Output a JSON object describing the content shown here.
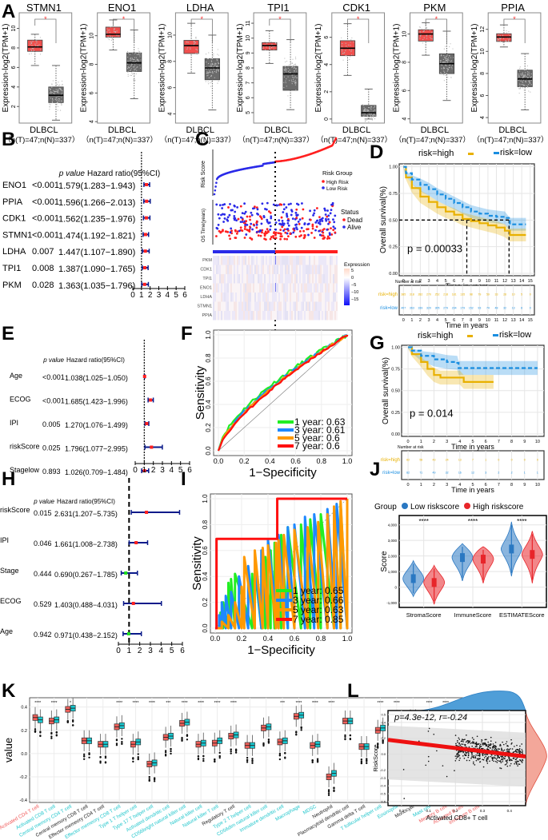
{
  "panel_labels": [
    "A",
    "B",
    "C",
    "D",
    "E",
    "F",
    "G",
    "H",
    "I",
    "J",
    "K",
    "L"
  ],
  "colors": {
    "tumor": "#f0504e",
    "normal": "#6b6b6b",
    "high_risk": "#ff2020",
    "low_risk": "#2a2ae8",
    "km_high": "#e8b000",
    "km_low": "#1a8ee0",
    "roc_1": "#22ee22",
    "roc_3": "#1e88ff",
    "roc_5": "#ff9900",
    "roc_7": "#ff1010",
    "violin_low": "#2a78c2",
    "violin_high": "#e8252a",
    "k_high": "#f0605a",
    "k_low": "#18c8d0",
    "forest_line": "#0a1a8a",
    "forest_point_red": "#ff2020",
    "forest_point_green": "#20e020"
  },
  "chart_data": [
    {
      "id": "A",
      "type": "box",
      "ylabel": "Expression-log2(TPM+1)",
      "xlabel": "DLBCL",
      "sample_label": "（n(T)=47;n(N)=337）",
      "significance": "*",
      "genes": [
        {
          "name": "STMN1",
          "yticks": [
            2,
            4,
            6,
            8,
            10
          ],
          "ylim": [
            0.3,
            11.6
          ],
          "tumor": {
            "min": 6.2,
            "q1": 7.65,
            "med": 8.1,
            "q3": 8.8,
            "max": 9.4
          },
          "normal": {
            "min": 0.6,
            "q1": 2.4,
            "med": 3.15,
            "q3": 4.0,
            "max": 6.2
          }
        },
        {
          "name": "ENO1",
          "yticks": [
            4,
            6,
            8,
            10
          ],
          "ylim": [
            3.9,
            11.6
          ],
          "tumor": {
            "min": 9.0,
            "q1": 9.9,
            "med": 10.1,
            "q3": 10.6,
            "max": 11.1
          },
          "normal": {
            "min": 5.6,
            "q1": 7.5,
            "med": 8.1,
            "q3": 8.8,
            "max": 10.4
          }
        },
        {
          "name": "LDHA",
          "yticks": [
            4,
            6,
            8,
            10
          ],
          "ylim": [
            3.3,
            11.7
          ],
          "tumor": {
            "min": 7.1,
            "q1": 8.6,
            "med": 9.2,
            "q3": 9.6,
            "max": 10.9
          },
          "normal": {
            "min": 4.3,
            "q1": 6.6,
            "med": 7.5,
            "q3": 8.2,
            "max": 10.0
          }
        },
        {
          "name": "TPI1",
          "yticks": [
            5,
            6,
            7,
            8,
            9,
            10,
            11
          ],
          "ylim": [
            4.3,
            11.7
          ],
          "tumor": {
            "min": 8.3,
            "q1": 9.2,
            "med": 9.5,
            "q3": 9.7,
            "max": 10.5
          },
          "normal": {
            "min": 5.2,
            "q1": 6.5,
            "med": 7.6,
            "q3": 8.1,
            "max": 9.9
          }
        },
        {
          "name": "CDK1",
          "yticks": [
            0,
            2,
            4,
            6
          ],
          "ylim": [
            -0.3,
            7.8
          ],
          "tumor": {
            "min": 3.2,
            "q1": 4.65,
            "med": 5.2,
            "q3": 5.75,
            "max": 7.0
          },
          "normal": {
            "min": 0.0,
            "q1": 0.2,
            "med": 0.45,
            "q3": 1.0,
            "max": 2.2
          }
        },
        {
          "name": "PKM",
          "yticks": [
            4,
            6,
            8,
            10
          ],
          "ylim": [
            3.7,
            11.5
          ],
          "tumor": {
            "min": 8.5,
            "q1": 9.5,
            "med": 10.0,
            "q3": 10.3,
            "max": 10.8
          },
          "normal": {
            "min": 5.3,
            "q1": 7.2,
            "med": 7.9,
            "q3": 8.6,
            "max": 10.2
          }
        },
        {
          "name": "PPIA",
          "yticks": [
            4,
            6,
            8,
            10,
            12
          ],
          "ylim": [
            3.5,
            13.5
          ],
          "tumor": {
            "min": 10.4,
            "q1": 10.9,
            "med": 11.3,
            "q3": 11.6,
            "max": 12.4
          },
          "normal": {
            "min": 4.7,
            "q1": 6.8,
            "med": 7.5,
            "q3": 8.3,
            "max": 9.8
          }
        }
      ]
    },
    {
      "id": "B",
      "type": "forest",
      "header": [
        "p value",
        "Hazard ratio(95%CI)"
      ],
      "xticks": [
        0,
        1,
        2,
        3,
        4,
        5,
        6
      ],
      "ref_line": 1,
      "rows": [
        {
          "label": "ENO1",
          "p": "<0.001",
          "hr_text": "1.579(1.283−1.943)",
          "hr": 1.579,
          "lo": 1.283,
          "hi": 1.943
        },
        {
          "label": "PPIA",
          "p": "<0.001",
          "hr_text": "1.596(1.266−2.013)",
          "hr": 1.596,
          "lo": 1.266,
          "hi": 2.013
        },
        {
          "label": "CDK1",
          "p": "<0.001",
          "hr_text": "1.562(1.235−1.976)",
          "hr": 1.562,
          "lo": 1.235,
          "hi": 1.976
        },
        {
          "label": "STMN1",
          "p": "<0.001",
          "hr_text": "1.474(1.192−1.821)",
          "hr": 1.474,
          "lo": 1.192,
          "hi": 1.821
        },
        {
          "label": "LDHA",
          "p": "0.007",
          "hr_text": "1.447(1.107−1.890)",
          "hr": 1.447,
          "lo": 1.107,
          "hi": 1.89
        },
        {
          "label": "TPI1",
          "p": "0.008",
          "hr_text": "1.387(1.090−1.765)",
          "hr": 1.387,
          "lo": 1.09,
          "hi": 1.765
        },
        {
          "label": "PKM",
          "p": "0.028",
          "hr_text": "1.363(1.035−1.796)",
          "hr": 1.363,
          "lo": 1.035,
          "hi": 1.796
        }
      ]
    },
    {
      "id": "C",
      "type": "risk-plot",
      "risk_ylabel": "Risk Score",
      "os_ylabel": "OS Time(years)",
      "legend_risk_title": "Risk Group",
      "legend_risk": [
        "High Risk",
        "Low Risk"
      ],
      "legend_status_title": "Status",
      "legend_status": [
        "Dead",
        "Alive"
      ],
      "heatmap_genes": [
        "PKM",
        "CDK1",
        "TPI1",
        "ENO1",
        "LDHA",
        "STMN1",
        "PPIA"
      ],
      "heatmap_legend_title": "Expression",
      "heatmap_legend_ticks": [
        "5",
        "0",
        "−5",
        "−10",
        "−15"
      ],
      "low_fraction": 0.5
    },
    {
      "id": "D",
      "type": "km",
      "legend": [
        "risk=high",
        "risk=low"
      ],
      "ylabel": "Overall survival(%)",
      "xlabel": "Time in years",
      "pvalue": "p = 0.00033",
      "yticks": [
        "0.00",
        "0.25",
        "0.50",
        "0.75",
        "1.00"
      ],
      "xticks": [
        0,
        1,
        2,
        3,
        4,
        5,
        6,
        7,
        8,
        9,
        10,
        11,
        12,
        13,
        14,
        15
      ],
      "median_high": 7.5,
      "median_low": 12.5,
      "high_curve": [
        [
          0,
          1
        ],
        [
          0.3,
          0.9
        ],
        [
          1,
          0.8
        ],
        [
          2,
          0.72
        ],
        [
          3,
          0.67
        ],
        [
          4,
          0.62
        ],
        [
          5,
          0.58
        ],
        [
          6,
          0.55
        ],
        [
          7,
          0.51
        ],
        [
          8,
          0.49
        ],
        [
          9,
          0.47
        ],
        [
          10,
          0.45
        ],
        [
          11,
          0.43
        ],
        [
          12,
          0.4
        ],
        [
          12.6,
          0.36
        ],
        [
          14.5,
          0.36
        ]
      ],
      "low_curve": [
        [
          0,
          1
        ],
        [
          0.3,
          0.94
        ],
        [
          1,
          0.88
        ],
        [
          2,
          0.83
        ],
        [
          3,
          0.79
        ],
        [
          4,
          0.74
        ],
        [
          5,
          0.7
        ],
        [
          6,
          0.66
        ],
        [
          7,
          0.62
        ],
        [
          8,
          0.58
        ],
        [
          9,
          0.56
        ],
        [
          10,
          0.54
        ],
        [
          11,
          0.53
        ],
        [
          12,
          0.52
        ],
        [
          12.6,
          0.46
        ],
        [
          14.5,
          0.46
        ]
      ],
      "risk_table_title": "Number at risk",
      "risk_table_rows": [
        "risk=high",
        "risk=low"
      ],
      "risk_high": [
        "385",
        "318",
        "282",
        "270",
        "252",
        "218",
        "181",
        "135",
        "98",
        "79",
        "59",
        "33",
        "28",
        "10",
        "5",
        "0"
      ],
      "risk_low": [
        "407",
        "363",
        "339",
        "320",
        "305",
        "279",
        "234",
        "179",
        "152",
        "93",
        "74",
        "48",
        "32",
        "13",
        "8",
        "0"
      ]
    },
    {
      "id": "E",
      "type": "forest",
      "header": [
        "p value",
        "Hazard ratio(95%CI)"
      ],
      "xticks": [
        0,
        1,
        2,
        3,
        4,
        5,
        6
      ],
      "ref_line": 1,
      "rows": [
        {
          "label": "Age",
          "p": "<0.001",
          "hr_text": "1.038(1.025−1.050)",
          "hr": 1.038,
          "lo": 1.025,
          "hi": 1.05
        },
        {
          "label": "ECOG",
          "p": "<0.001",
          "hr_text": "1.685(1.423−1.996)",
          "hr": 1.685,
          "lo": 1.423,
          "hi": 1.996
        },
        {
          "label": "IPI",
          "p": "0.005",
          "hr_text": "1.270(1.076−1.499)",
          "hr": 1.27,
          "lo": 1.076,
          "hi": 1.499
        },
        {
          "label": "riskScore",
          "p": "0.025",
          "hr_text": "1.796(1.077−2.995)",
          "hr": 1.796,
          "lo": 1.077,
          "hi": 2.995
        },
        {
          "label": "Stagelow",
          "p": "0.893",
          "hr_text": "1.026(0.709−1.484)",
          "hr": 1.026,
          "lo": 0.709,
          "hi": 1.484
        }
      ]
    },
    {
      "id": "F",
      "type": "roc",
      "xlabel": "1−Specificity",
      "ylabel": "Sensitivity",
      "ticks": [
        "0.0",
        "0.2",
        "0.4",
        "0.6",
        "0.8",
        "1.0"
      ],
      "legend": [
        "1 year: 0.63",
        "3 year: 0.61",
        "5 year: 0.6",
        "7 year: 0.6"
      ],
      "auc": [
        0.63,
        0.61,
        0.6,
        0.6
      ]
    },
    {
      "id": "G",
      "type": "km",
      "legend": [
        "risk=high",
        "risk=low"
      ],
      "ylabel": "Overall survival(%)",
      "xlabel": "Time in years",
      "pvalue": "p = 0.014",
      "yticks": [
        "0.00",
        "0.25",
        "0.50",
        "0.75",
        "1.00"
      ],
      "xticks": [
        0,
        1,
        2,
        3,
        4,
        5,
        6,
        7,
        8,
        9,
        10
      ],
      "high_curve": [
        [
          0,
          1
        ],
        [
          0.3,
          0.92
        ],
        [
          1,
          0.83
        ],
        [
          1.5,
          0.75
        ],
        [
          2,
          0.68
        ],
        [
          2.5,
          0.65
        ],
        [
          4,
          0.65
        ],
        [
          4.3,
          0.6
        ],
        [
          6.6,
          0.6
        ]
      ],
      "low_curve": [
        [
          0,
          1
        ],
        [
          0.3,
          0.96
        ],
        [
          1,
          0.9
        ],
        [
          2,
          0.86
        ],
        [
          3,
          0.83
        ],
        [
          3.8,
          0.82
        ],
        [
          3.9,
          0.76
        ],
        [
          10,
          0.76
        ]
      ],
      "risk_table_title": "Number at risk",
      "risk_table_rows": [
        "risk=high",
        "risk=low"
      ],
      "risk_high": [
        "82",
        "58",
        "43",
        "24",
        "13",
        "7",
        "1",
        "0",
        "0",
        "0",
        "0"
      ],
      "risk_low": [
        "82",
        "71",
        "49",
        "32",
        "16",
        "12",
        "3",
        "2",
        "2",
        "1",
        "1"
      ]
    },
    {
      "id": "H",
      "type": "forest",
      "header": [
        "p value",
        "Hazard ratio(95%CI)"
      ],
      "xticks": [
        0,
        1,
        2,
        3,
        4,
        5,
        6
      ],
      "ref_line": 1,
      "rows": [
        {
          "label": "riskScore",
          "p": "0.015",
          "hr_text": "2.631(1.207−5.735)",
          "hr": 2.631,
          "lo": 1.207,
          "hi": 5.735
        },
        {
          "label": "IPI",
          "p": "0.046",
          "hr_text": "1.661(1.008−2.738)",
          "hr": 1.661,
          "lo": 1.008,
          "hi": 2.738
        },
        {
          "label": "Stage",
          "p": "0.444",
          "hr_text": "0.690(0.267−1.785)",
          "hr": 0.69,
          "lo": 0.267,
          "hi": 1.785
        },
        {
          "label": "ECOG",
          "p": "0.529",
          "hr_text": "1.403(0.488−4.031)",
          "hr": 1.403,
          "lo": 0.488,
          "hi": 4.031
        },
        {
          "label": "Age",
          "p": "0.942",
          "hr_text": "0.971(0.438−2.152)",
          "hr": 0.971,
          "lo": 0.438,
          "hi": 2.152
        }
      ]
    },
    {
      "id": "I",
      "type": "roc",
      "xlabel": "1−Specificity",
      "ylabel": "Sensitivity",
      "ticks": [
        "0.0",
        "0.2",
        "0.4",
        "0.6",
        "0.8",
        "1.0"
      ],
      "legend": [
        "1 year: 0.65",
        "3 year: 0.66",
        "5 year: 0.63",
        "7 year: 0.85"
      ],
      "auc": [
        0.65,
        0.66,
        0.63,
        0.85
      ]
    },
    {
      "id": "J",
      "type": "violin",
      "legend_title": "Group",
      "legend": [
        "Low riskscore",
        "High riskscore"
      ],
      "ylabel": "Score",
      "yticks": [
        "-1,000",
        "0",
        "1,000",
        "2,000",
        "3,000",
        "4,000"
      ],
      "ylim": [
        -1300,
        4600
      ],
      "categories": [
        "StromaScore",
        "ImmuneScore",
        "ESTIMATEScore"
      ],
      "significance": [
        "****",
        "****",
        "****"
      ],
      "low_medians": [
        550,
        1900,
        2450
      ],
      "high_medians": [
        300,
        1800,
        2100
      ],
      "low_range": [
        [
          -600,
          1700
        ],
        [
          400,
          2800
        ],
        [
          700,
          4200
        ]
      ],
      "high_range": [
        [
          -1100,
          1400
        ],
        [
          250,
          2600
        ],
        [
          250,
          3600
        ]
      ]
    },
    {
      "id": "K",
      "type": "box",
      "ylabel": "value",
      "yticks": [
        "-0.4",
        "-0.2",
        "0.0",
        "0.2",
        "0.4"
      ],
      "ylim": [
        -0.42,
        0.48
      ],
      "legend_title": "Group",
      "legend": [
        "high",
        "low"
      ],
      "categories": [
        "Activated CD4 T cell",
        "Activated CD8 T cell",
        "Central memory CD4 T cell",
        "Central memory CD8 T cell",
        "Effector memeory CD4 T cell",
        "Effector memeory CD8 T cell",
        "Type 1 T helper cell",
        "Type 17 T helper cell",
        "Activated dendritic cell",
        "CD56bright natural killer cell",
        "Natural killer cell",
        "Natural killer T cell",
        "Regulatory T cell",
        "Type 2 T helper cell",
        "CD56dim natural killer cell",
        "Immature dendritic cell",
        "Macrophage",
        "MDSC",
        "Neutrophil",
        "Plasmacytoid dendritic cell",
        "Gamma delta T cell",
        "T follicular helper cell",
        "Eosinophil",
        "Monocyte",
        "Mast cell",
        "Memory B cell",
        "Activated B cell",
        "Immature B cell"
      ],
      "label_colors": [
        "red",
        "cyan",
        "cyan",
        "black",
        "black",
        "cyan",
        "cyan",
        "cyan",
        "cyan",
        "cyan",
        "cyan",
        "cyan",
        "black",
        "cyan",
        "cyan",
        "cyan",
        "cyan",
        "cyan",
        "black",
        "black",
        "black",
        "cyan",
        "cyan",
        "black",
        "cyan",
        "red",
        "red",
        "red"
      ],
      "significance": [
        "****",
        "****",
        "*",
        "",
        "",
        "****",
        "****",
        "****",
        "***",
        "****",
        "****",
        "****",
        "****",
        "",
        "",
        "***",
        "****",
        "****",
        "****",
        "",
        "",
        "****",
        "****",
        "",
        "****",
        "****",
        "****",
        "*"
      ],
      "high_medians": [
        0.31,
        0.28,
        0.38,
        0.11,
        0.08,
        0.23,
        0.08,
        -0.09,
        0.14,
        0.26,
        0.08,
        0.09,
        0.15,
        0.07,
        0.22,
        0.1,
        0.32,
        0.07,
        -0.2,
        0.28,
        0.06,
        0.2,
        -0.02,
        0.29,
        0.12,
        0.17,
        0.34,
        0.33
      ],
      "low_medians": [
        0.29,
        0.29,
        0.39,
        0.11,
        0.08,
        0.24,
        0.1,
        -0.08,
        0.15,
        0.27,
        0.09,
        0.11,
        0.16,
        0.07,
        0.23,
        0.11,
        0.33,
        0.08,
        -0.17,
        0.28,
        0.06,
        0.22,
        0.0,
        0.29,
        0.14,
        0.15,
        0.33,
        0.32
      ]
    },
    {
      "id": "L",
      "type": "scatter",
      "annotation": "p=4.3e-12, r=-0.24",
      "xlabel": "Activated CD8+ T cell",
      "ylabel": "RiskScore",
      "xticks": [
        "0.0",
        "0.1",
        "0.2",
        "0.3",
        "0.4"
      ],
      "yticks": [
        "-0.6",
        "-0.5",
        "-0.4",
        "-0.3",
        "-0.2",
        "0.0",
        "0.2",
        "0.4",
        "0.5"
      ],
      "xlim": [
        -0.05,
        0.46
      ],
      "ylim": [
        -0.65,
        0.55
      ],
      "fit_line": [
        [
          -0.05,
          0.18
        ],
        [
          0.46,
          -0.03
        ]
      ]
    }
  ]
}
